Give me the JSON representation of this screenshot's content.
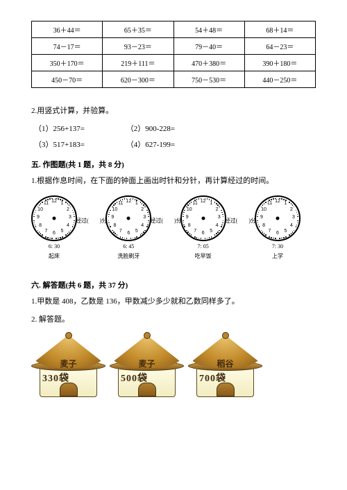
{
  "table": {
    "rows": [
      [
        "36＋44＝",
        "65＋35＝",
        "54＋48＝",
        "68＋14＝"
      ],
      [
        "74－17＝",
        "93－23＝",
        "79－40＝",
        "64－23＝"
      ],
      [
        "350＋170＝",
        "219＋111＝",
        "470＋380＝",
        "390＋180＝"
      ],
      [
        "450－70＝",
        "620－300＝",
        "750－530＝",
        "440－250＝"
      ]
    ]
  },
  "q2": {
    "title": "2.用竖式计算，并验算。",
    "items": [
      "（1）256+137=",
      "（2）900-228=",
      "（3）517+183=",
      "（4）627-199="
    ]
  },
  "sec5": {
    "title": "五. 作图题(共 1 题，共 8 分)",
    "q1": "1.根据作息时间，在下面的钟面上画出时针和分针，再计算经过的时间。"
  },
  "clocks": {
    "connector": "经过(　　)分",
    "items": [
      {
        "time": "6: 30",
        "label": "起床"
      },
      {
        "time": "6: 45",
        "label": "洗脸刷牙"
      },
      {
        "time": "7: 05",
        "label": "吃早饭"
      },
      {
        "time": "7: 30",
        "label": "上学"
      }
    ],
    "numbers": [
      "12",
      "1",
      "2",
      "3",
      "4",
      "5",
      "6",
      "7",
      "8",
      "9",
      "10",
      "11"
    ]
  },
  "sec6": {
    "title": "六. 解答题(共 6 题，共 37 分)",
    "q1": "1.甲数是 408，乙数是 136，甲数减少多少就和乙数同样多了。",
    "q2": "2. 解答题。"
  },
  "barns": [
    {
      "name": "麦子",
      "qty": "330袋"
    },
    {
      "name": "麦子",
      "qty": "500袋"
    },
    {
      "name": "稻谷",
      "qty": "700袋"
    }
  ],
  "colors": {
    "text": "#000000",
    "bg": "#ffffff",
    "barn_roof_light": "#e8c068",
    "barn_roof_dark": "#8a5a1a",
    "barn_body": "#f2ecc0",
    "barn_outline": "#5b4a1e"
  }
}
